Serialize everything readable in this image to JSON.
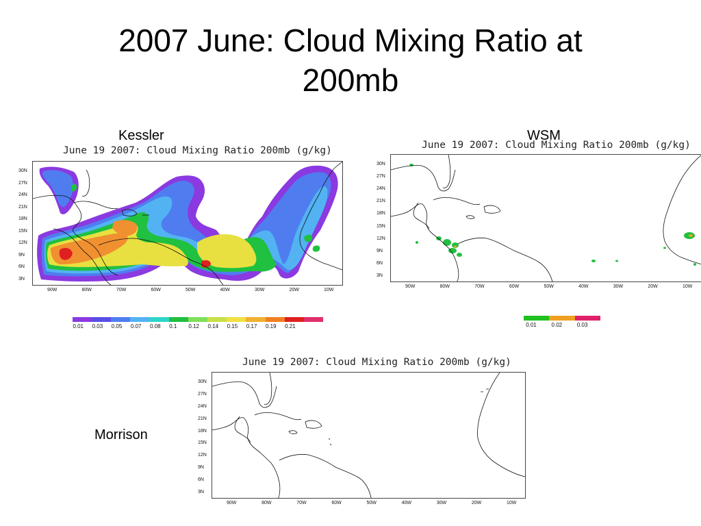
{
  "slide": {
    "title_line1": "2007 June: Cloud Mixing Ratio at",
    "title_line2": "200mb"
  },
  "panels": {
    "kessler": {
      "label": "Kessler",
      "plot_title": "June 19 2007: Cloud Mixing Ratio 200mb (g/kg)",
      "colorbar": {
        "colors": [
          "#8a3ae0",
          "#5a4ee8",
          "#4f7df0",
          "#53b3f2",
          "#2ed6c8",
          "#20c040",
          "#7ee05a",
          "#c8e048",
          "#f0e040",
          "#f0b030",
          "#f08020",
          "#e02020",
          "#e0306a"
        ],
        "labels": [
          "0.01",
          "0.03",
          "0.05",
          "0.07",
          "0.08",
          "0.1",
          "0.12",
          "0.14",
          "0.15",
          "0.17",
          "0.19",
          "0.21"
        ]
      }
    },
    "wsm": {
      "label": "WSM",
      "plot_title": "June 19 2007: Cloud Mixing Ratio 200mb (g/kg)",
      "colorbar": {
        "colors": [
          "#20c020",
          "#f0a020",
          "#e0206a"
        ],
        "labels": [
          "0.01",
          "0.02",
          "0.03"
        ]
      }
    },
    "morrison": {
      "label": "Morrison",
      "plot_title": "June 19 2007: Cloud Mixing Ratio 200mb (g/kg)"
    }
  },
  "axes": {
    "lat_labels": [
      "30N",
      "27N",
      "24N",
      "21N",
      "18N",
      "15N",
      "12N",
      "9N",
      "6N",
      "3N"
    ],
    "lon_labels": [
      "90W",
      "80W",
      "70W",
      "60W",
      "50W",
      "40W",
      "30W",
      "20W",
      "10W"
    ]
  },
  "map_colors": {
    "coast": "#111111",
    "purple": "#8a3ae0",
    "blue": "#4f7df0",
    "cyan": "#53b3f2",
    "green": "#20c040",
    "yellow": "#e8e040",
    "orange": "#f09030",
    "red": "#e02020"
  }
}
